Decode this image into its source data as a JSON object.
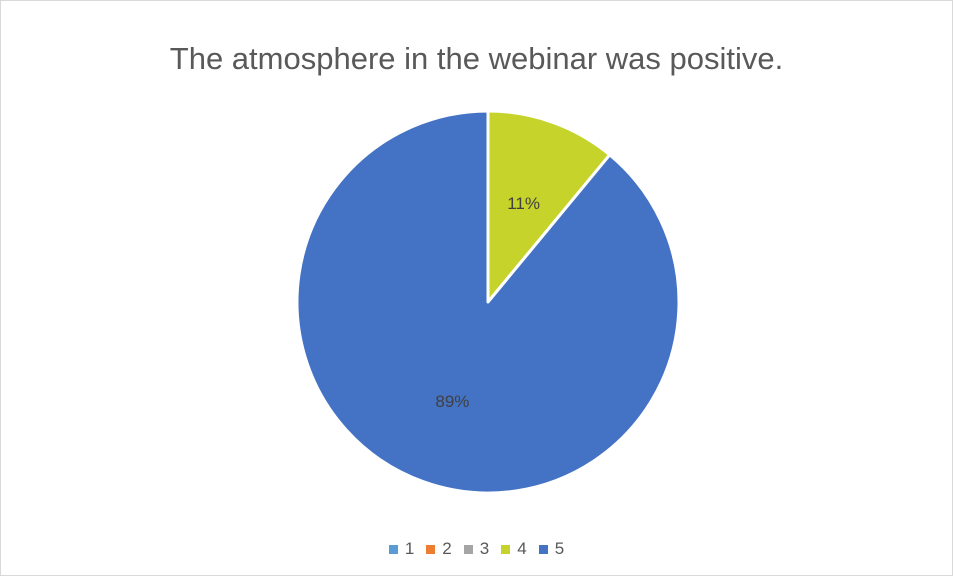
{
  "chart_data": {
    "type": "pie",
    "title": "The atmosphere in the webinar was positive.",
    "categories": [
      "1",
      "2",
      "3",
      "4",
      "5"
    ],
    "values": [
      0,
      0,
      0,
      11,
      89
    ],
    "labels": [
      "",
      "",
      "",
      "11%",
      "89%"
    ],
    "colors": [
      "#5B9BD5",
      "#ED7D31",
      "#A5A5A5",
      "#C5D32B",
      "#4472C4"
    ],
    "legend": "bottom",
    "start_angle_deg": 0
  }
}
